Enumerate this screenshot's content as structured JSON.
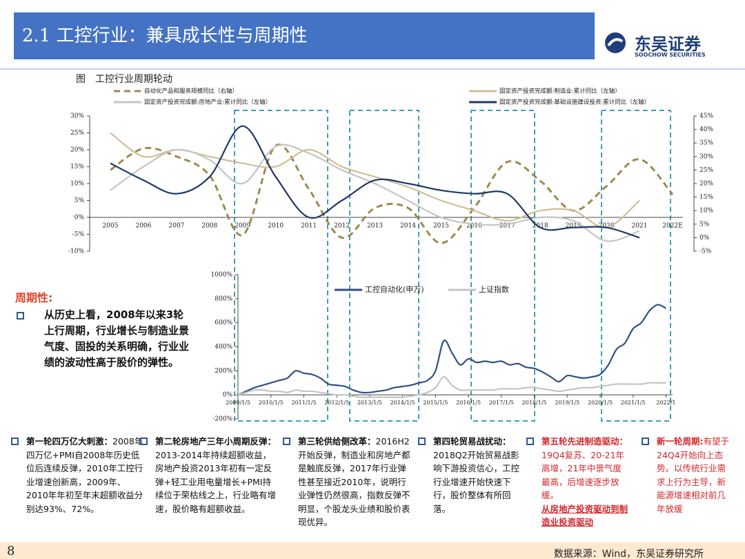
{
  "header": {
    "title": "2.1 工控行业：兼具成长性与周期性",
    "logo": "东吴证券",
    "logo_sub": "SOOCHOW SECURITIES"
  },
  "figure_caption": "图　工控行业周期轮动",
  "chart_data": [
    {
      "type": "line",
      "categories": [
        "2005",
        "2006",
        "2007",
        "2008",
        "2009",
        "2010",
        "2011",
        "2012",
        "2013",
        "2014",
        "2015",
        "2016",
        "2017",
        "2018",
        "2019",
        "2020",
        "2021",
        "2022E"
      ],
      "ylim": [
        -10,
        30
      ],
      "yticks": [
        {
          "value": -10,
          "label": "-10%"
        },
        {
          "value": -5,
          "label": "-5%"
        },
        {
          "value": 0,
          "label": "0%"
        },
        {
          "value": 5,
          "label": "5%"
        },
        {
          "value": 10,
          "label": "10%"
        },
        {
          "value": 15,
          "label": "15%"
        },
        {
          "value": 20,
          "label": "20%"
        },
        {
          "value": 25,
          "label": "25%"
        },
        {
          "value": 30,
          "label": "30%"
        }
      ],
      "y2lim": [
        -5,
        45
      ],
      "y2ticks": [
        {
          "value": -5,
          "label": "-5%"
        },
        {
          "value": 0,
          "label": "0%"
        },
        {
          "value": 5,
          "label": "5%"
        },
        {
          "value": 10,
          "label": "10%"
        },
        {
          "value": 15,
          "label": "15%"
        },
        {
          "value": 20,
          "label": "20%"
        },
        {
          "value": 25,
          "label": "25%"
        },
        {
          "value": 30,
          "label": "30%"
        },
        {
          "value": 35,
          "label": "35%"
        },
        {
          "value": 40,
          "label": "40%"
        },
        {
          "value": 45,
          "label": "45%"
        }
      ],
      "series": [
        {
          "name": "自动化产品和服务规模同比（右轴）",
          "color": "#9c8a4e",
          "dashed": true,
          "axis": "y2",
          "values": [
            25,
            33,
            30,
            23,
            1,
            34,
            18,
            0,
            11,
            11,
            -2,
            11,
            28,
            21,
            10,
            19,
            29,
            16
          ]
        },
        {
          "name": "固定资产投资完成额:制造业:累计同比（左轴）",
          "color": "#cdbf95",
          "values": [
            25,
            18,
            20,
            18,
            16,
            15,
            20,
            15,
            12,
            9,
            5,
            2,
            -1,
            2,
            2,
            -3,
            5,
            null
          ]
        },
        {
          "name": "固定资产投资完成额:房地产业:累计同比（左轴）",
          "color": "#c4c4c4",
          "values": [
            8,
            15,
            20,
            17,
            10,
            21,
            19,
            14,
            10,
            5,
            0,
            -2,
            -2,
            0,
            -1,
            -7,
            -4,
            null
          ]
        },
        {
          "name": "固定资产投资完成额:基础设施建设投资:累计同比（左轴）",
          "color": "#1f3864",
          "values": [
            16,
            11,
            7,
            12,
            27,
            12,
            0,
            5,
            11,
            10,
            8,
            7,
            7,
            -3,
            -3,
            -3,
            -6,
            null
          ]
        }
      ]
    },
    {
      "type": "line",
      "x": [
        2009,
        2009.25,
        2009.5,
        2009.75,
        2010,
        2010.25,
        2010.5,
        2010.75,
        2011,
        2011.25,
        2011.5,
        2011.75,
        2012,
        2012.25,
        2012.5,
        2012.75,
        2013,
        2013.25,
        2013.5,
        2013.75,
        2014,
        2014.25,
        2014.5,
        2014.75,
        2015,
        2015.25,
        2015.5,
        2015.75,
        2016,
        2016.25,
        2016.5,
        2016.75,
        2017,
        2017.25,
        2017.5,
        2017.75,
        2018,
        2018.25,
        2018.5,
        2018.75,
        2019,
        2019.25,
        2019.5,
        2019.75,
        2020,
        2020.25,
        2020.5,
        2020.75,
        2021,
        2021.25,
        2021.5,
        2021.75,
        2022
      ],
      "xlim": [
        2009,
        2022.2
      ],
      "xticks": [
        {
          "value": 2009,
          "label": "2009/1/5"
        },
        {
          "value": 2010,
          "label": "2010/1/5"
        },
        {
          "value": 2011,
          "label": "2011/1/5"
        },
        {
          "value": 2012,
          "label": "2012/1/5"
        },
        {
          "value": 2013,
          "label": "2013/1/5"
        },
        {
          "value": 2014,
          "label": "2014/1/5"
        },
        {
          "value": 2015,
          "label": "2015/1/5"
        },
        {
          "value": 2016,
          "label": "2016/1/5"
        },
        {
          "value": 2017,
          "label": "2017/1/5"
        },
        {
          "value": 2018,
          "label": "2018/1/5"
        },
        {
          "value": 2019,
          "label": "2019/1/5"
        },
        {
          "value": 2020,
          "label": "2020/1/5"
        },
        {
          "value": 2021,
          "label": "2021/1/5"
        },
        {
          "value": 2022,
          "label": "2022/1"
        }
      ],
      "ylim": [
        -200,
        1000
      ],
      "yticks": [
        {
          "value": -200,
          "label": "-200%"
        },
        {
          "value": 0,
          "label": "0%"
        },
        {
          "value": 200,
          "label": "200%"
        },
        {
          "value": 400,
          "label": "400%"
        },
        {
          "value": 600,
          "label": "600%"
        },
        {
          "value": 800,
          "label": "800%"
        },
        {
          "value": 1000,
          "label": "1000%"
        }
      ],
      "series": [
        {
          "name": "工控自动化(申万)",
          "color": "#2f4f86",
          "values": [
            0,
            30,
            60,
            80,
            100,
            120,
            140,
            200,
            180,
            170,
            140,
            90,
            80,
            70,
            40,
            20,
            20,
            30,
            40,
            60,
            70,
            80,
            100,
            120,
            200,
            450,
            350,
            250,
            300,
            270,
            280,
            270,
            280,
            250,
            260,
            230,
            220,
            190,
            150,
            110,
            160,
            150,
            140,
            150,
            170,
            250,
            380,
            430,
            550,
            600,
            700,
            750,
            720
          ]
        },
        {
          "name": "上证指数",
          "color": "#c4c4c4",
          "values": [
            0,
            20,
            40,
            40,
            30,
            30,
            20,
            40,
            30,
            30,
            20,
            10,
            0,
            0,
            -10,
            -20,
            -20,
            -20,
            -20,
            -20,
            -20,
            -10,
            0,
            20,
            60,
            150,
            80,
            40,
            40,
            40,
            40,
            40,
            50,
            50,
            50,
            60,
            60,
            50,
            40,
            30,
            40,
            50,
            60,
            60,
            70,
            80,
            90,
            90,
            90,
            90,
            100,
            100,
            100
          ]
        }
      ]
    }
  ],
  "sidebar": {
    "heading": "周期性:",
    "text": "从历史上看，2008年以来3轮上行周期，行业增长与制造业景气度、固投的关系明确，行业业绩的波动性高于股价的弹性。"
  },
  "notes": [
    {
      "title": "第一轮四万亿大刺激：",
      "body": "2008年四万亿+PMI自2008年历史低位后连续反弹，2010年工控行业增速创新高，2009年、2010年年初至年末超额收益分别达93%、72%。"
    },
    {
      "title": "第二轮房地产三年小周期反弹：",
      "body": "2013-2014年持续超额收益，房地产投资2013年初有一定反弹+轻工业用电量增长+PMI持续位于荣枯线之上，行业略有增速，股价略有超额收益。"
    },
    {
      "title": "第三轮供给侧改革：",
      "body": "2016H2开始反弹，制造业和房地产都是触底反弹，2017年行业弹性甚至接近2010年，说明行业弹性仍然很高，指数反弹不明显，个股龙头业绩和股价表现优异。"
    },
    {
      "title": "第四轮贸易战扰动：",
      "body": "2018Q2开始贸易战影响下游投资信心，工控行业增速开始快速下行，股价整体有所回落。"
    },
    {
      "title": "第五轮先进制造驱动：",
      "body": "19Q4复苏、20-21年高增，21年中景气度最高，后增速逐步放缓。",
      "emphasis": "从房地产投资驱动到制造业投资驱动"
    },
    {
      "title": "新一轮周期:",
      "body": "有望于24Q4开始向上态势。以传统行业需求上行为主导，新能源增速相对前几年放缓"
    }
  ],
  "footer": {
    "page": "8",
    "source": "数据来源：Wind，东吴证券研究所"
  }
}
